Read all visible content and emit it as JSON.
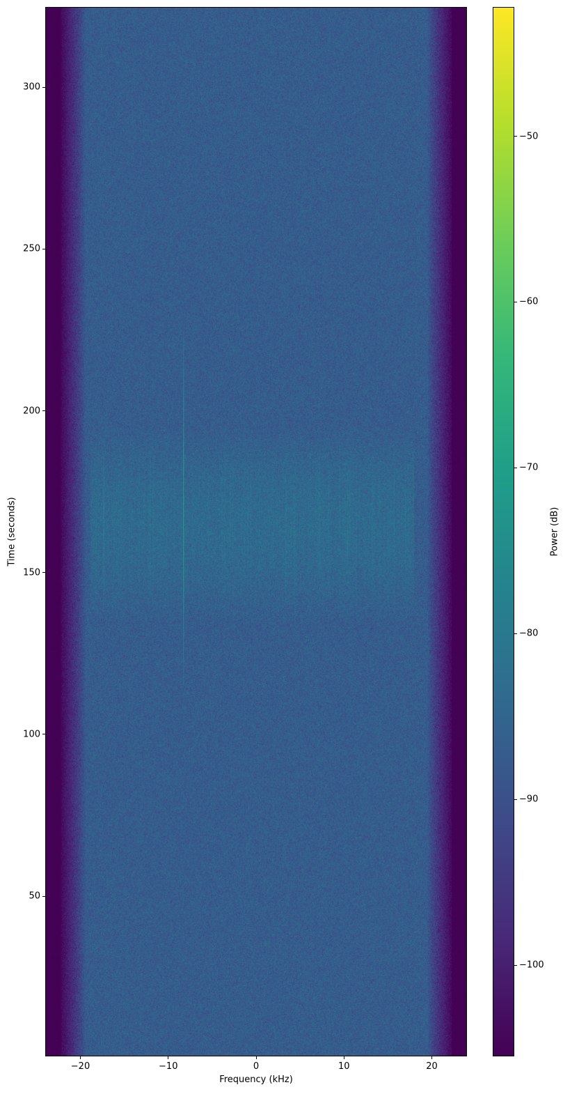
{
  "chart_data": {
    "type": "heatmap",
    "title": "",
    "xlabel": "Frequency (kHz)",
    "ylabel": "Time (seconds)",
    "colorbar_label": "Power (dB)",
    "colormap": "viridis",
    "xlim": [
      -24,
      24
    ],
    "ylim": [
      0.5,
      324.8
    ],
    "clim": [
      -105.5,
      -42.2
    ],
    "xticks": [
      -20,
      -10,
      0,
      10,
      20
    ],
    "xtick_labels": [
      "−20",
      "−10",
      "0",
      "10",
      "20"
    ],
    "yticks": [
      50,
      100,
      150,
      200,
      250,
      300
    ],
    "ytick_labels": [
      "50",
      "100",
      "150",
      "200",
      "250",
      "300"
    ],
    "cticks": [
      -100,
      -90,
      -80,
      -70,
      -60,
      -50
    ],
    "ctick_labels": [
      "−100",
      "−90",
      "−80",
      "−70",
      "−60",
      "−50"
    ],
    "grid": false,
    "features": {
      "noise_floor_db": -87,
      "passband_khz": [
        -20,
        20
      ],
      "stopband_db": -105,
      "broadband_burst": {
        "time_s": [
          135,
          195
        ],
        "freq_khz": [
          -19,
          18
        ],
        "level_db": -80
      },
      "tone": {
        "freq_khz": -8.3,
        "time_s": [
          115,
          225
        ],
        "peak_db": -70
      }
    }
  }
}
